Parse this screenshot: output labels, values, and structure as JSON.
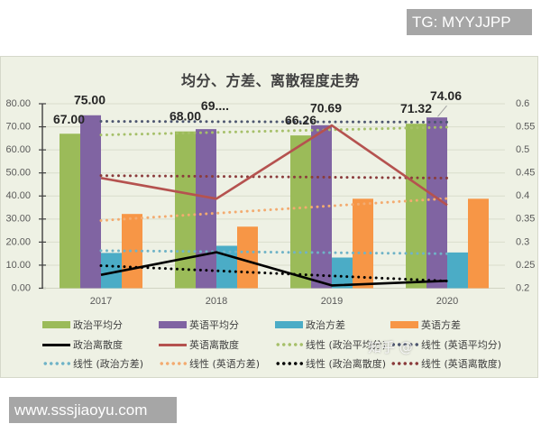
{
  "watermarks": {
    "top_right": "TG: MYYJJPP",
    "bottom_left": "www.sssjiaoyu.com",
    "zhihu": "知乎 @"
  },
  "chart_data": {
    "type": "bar",
    "title": "均分、方差、离散程度走势",
    "xlabel": "",
    "ylabel": "",
    "categories": [
      "2017",
      "2018",
      "2019",
      "2020"
    ],
    "y_left": {
      "range": [
        0,
        80
      ],
      "tick_values": [
        0,
        10,
        20,
        30,
        40,
        50,
        60,
        70,
        80
      ],
      "tick_labels": [
        "0.00",
        "10.00",
        "20.00",
        "30.00",
        "40.00",
        "50.00",
        "60.00",
        "70.00",
        "80.00"
      ]
    },
    "y_right": {
      "range": [
        0.2,
        0.6
      ],
      "tick_values": [
        0.2,
        0.25,
        0.3,
        0.35,
        0.4,
        0.45,
        0.5,
        0.55,
        0.6
      ],
      "tick_labels": [
        "0.2",
        "0.25",
        "0.3",
        "0.35",
        "0.4",
        "0.45",
        "0.5",
        "0.55",
        "0.6"
      ]
    },
    "grid": true,
    "legend_position": "bottom",
    "series": [
      {
        "name": "政治平均分",
        "type": "bar",
        "axis": "left",
        "color": "#9bbb59",
        "values": [
          67.0,
          68.0,
          66.26,
          71.32
        ],
        "labels": [
          "67.00",
          "68.00",
          "66.26",
          "71.32"
        ],
        "label_offsets": [
          [
            -1,
            -15
          ],
          [
            0,
            -16
          ],
          [
            0,
            -16
          ],
          [
            0,
            -16
          ]
        ],
        "label_leader": [
          false,
          false,
          false,
          false
        ]
      },
      {
        "name": "英语平均分",
        "type": "bar",
        "axis": "left",
        "color": "#8064a2",
        "values": [
          75.0,
          69.0,
          70.69,
          74.06
        ],
        "labels": [
          "75.00",
          "69....",
          "70.69",
          "74.06"
        ],
        "label_offsets": [
          [
            -1,
            -16
          ],
          [
            10,
            -25
          ],
          [
            5,
            -18
          ],
          [
            10,
            -23
          ]
        ],
        "label_leader": [
          false,
          false,
          false,
          true
        ]
      },
      {
        "name": "政治方差",
        "type": "bar",
        "axis": "left",
        "color": "#4bacc6",
        "values": [
          15.3,
          18.4,
          13.3,
          15.5
        ]
      },
      {
        "name": "英语方差",
        "type": "bar",
        "axis": "left",
        "color": "#f79646",
        "values": [
          32.2,
          26.7,
          38.8,
          38.8
        ]
      },
      {
        "name": "政治离散度",
        "type": "line",
        "axis": "right",
        "color": "#000000",
        "values": [
          0.229,
          0.278,
          0.206,
          0.216
        ]
      },
      {
        "name": "英语离散度",
        "type": "line",
        "axis": "right",
        "color": "#b5524f",
        "values": [
          0.439,
          0.394,
          0.553,
          0.38
        ]
      }
    ],
    "trendlines": [
      {
        "name": "线性 (政治平均分)",
        "of": 0,
        "kind": "linear",
        "color": "#a6c06a"
      },
      {
        "name": "线性 (英语平均分)",
        "of": 1,
        "kind": "linear",
        "color": "#4d5670"
      },
      {
        "name": "线性 (政治方差)",
        "of": 2,
        "kind": "linear",
        "color": "#6fb3c7"
      },
      {
        "name": "线性 (英语方差)",
        "of": 3,
        "kind": "linear",
        "color": "#f3ab70"
      },
      {
        "name": "线性 (政治离散度)",
        "of": 4,
        "kind": "linear",
        "color": "#000000"
      },
      {
        "name": "线性 (英语离散度)",
        "of": 5,
        "kind": "linear",
        "color": "#8a3b3b"
      }
    ],
    "legend": [
      {
        "label": "政治平均分",
        "swatch": "bar",
        "color": "#9bbb59"
      },
      {
        "label": "英语平均分",
        "swatch": "bar",
        "color": "#8064a2"
      },
      {
        "label": "政治方差",
        "swatch": "bar",
        "color": "#4bacc6"
      },
      {
        "label": "英语方差",
        "swatch": "bar",
        "color": "#f79646"
      },
      {
        "label": "政治离散度",
        "swatch": "line",
        "color": "#000000"
      },
      {
        "label": "英语离散度",
        "swatch": "line",
        "color": "#b5524f"
      },
      {
        "label": "线性 (政治平均分)",
        "swatch": "dots",
        "color": "#a6c06a"
      },
      {
        "label": "线性 (英语平均分)",
        "swatch": "dots",
        "color": "#4d5670"
      },
      {
        "label": "线性 (政治方差)",
        "swatch": "dots",
        "color": "#6fb3c7"
      },
      {
        "label": "线性 (英语方差)",
        "swatch": "dots",
        "color": "#f3ab70"
      },
      {
        "label": "线性 (政治离散度)",
        "swatch": "dots",
        "color": "#000000"
      },
      {
        "label": "线性 (英语离散度)",
        "swatch": "dots",
        "color": "#8a3b3b"
      }
    ]
  }
}
